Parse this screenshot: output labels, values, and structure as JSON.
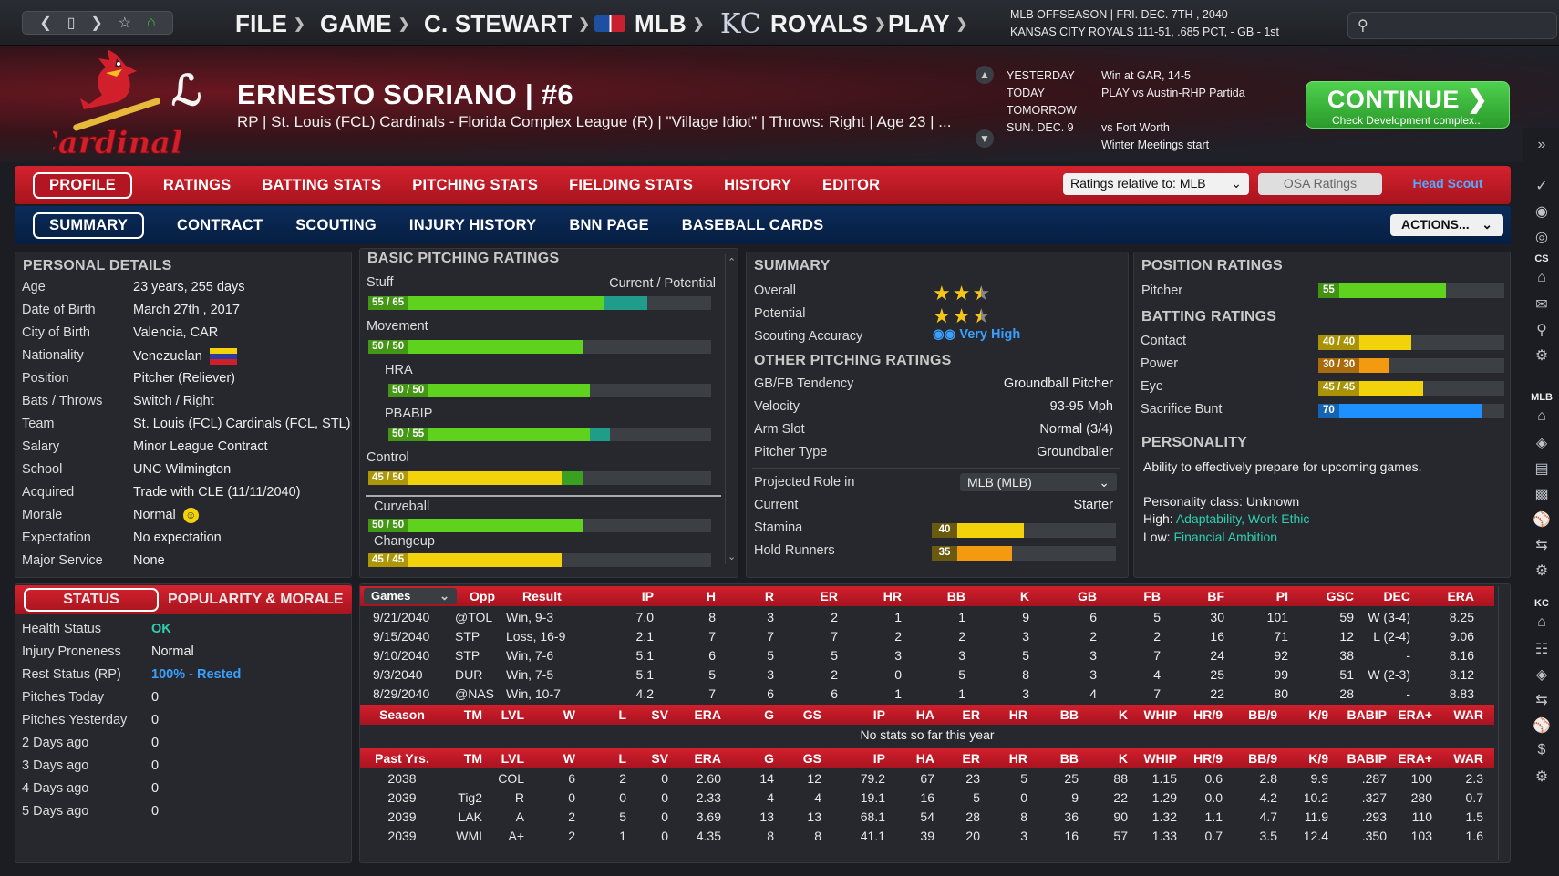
{
  "topbar": {
    "menus": [
      "FILE",
      "GAME",
      "C. STEWART",
      "MLB",
      "ROYALS",
      "PLAY"
    ],
    "info1": "MLB OFFSEASON  |  FRI. DEC. 7TH , 2040",
    "info2": "KANSAS CITY ROYALS   111-51, .685 PCT, - GB - 1st"
  },
  "player": {
    "name": "ERNESTO SORIANO  |  #6",
    "desc": "RP | St. Louis (FCL) Cardinals - Florida Complex League (R)  |  \"Village Idiot\" | Throws: Right  |  Age 23  |  ..."
  },
  "schedule": {
    "labels": [
      "YESTERDAY",
      "TODAY",
      "TOMORROW",
      "SUN. DEC. 9"
    ],
    "values": [
      "Win at GAR, 14-5",
      "PLAY vs Austin-RHP Partida",
      "",
      "vs Fort Worth"
    ],
    "extra": "Winter Meetings start"
  },
  "continue": {
    "title": "CONTINUE",
    "sub": "Check Development complex..."
  },
  "tabs1": [
    "PROFILE",
    "RATINGS",
    "BATTING STATS",
    "PITCHING STATS",
    "FIELDING STATS",
    "HISTORY",
    "EDITOR"
  ],
  "tabs2": [
    "SUMMARY",
    "CONTRACT",
    "SCOUTING",
    "INJURY HISTORY",
    "BNN PAGE",
    "BASEBALL CARDS"
  ],
  "controls": {
    "ratings_relative": "Ratings relative to: MLB",
    "osa": "OSA Ratings",
    "head_scout": "Head Scout",
    "actions": "ACTIONS..."
  },
  "personal": {
    "title": "PERSONAL DETAILS",
    "rows": [
      [
        "Age",
        "23 years, 255 days"
      ],
      [
        "Date of Birth",
        "March 27th , 2017"
      ],
      [
        "City of Birth",
        "Valencia, CAR"
      ],
      [
        "Nationality",
        "Venezuelan"
      ],
      [
        "Position",
        "Pitcher (Reliever)"
      ],
      [
        "Bats / Throws",
        "Switch / Right"
      ],
      [
        "Team",
        "St. Louis (FCL) Cardinals (FCL, STL)"
      ],
      [
        "Salary",
        "Minor League Contract"
      ],
      [
        "School",
        "UNC Wilmington"
      ],
      [
        "Acquired",
        "Trade with CLE (11/11/2040)"
      ],
      [
        "Morale",
        "Normal"
      ],
      [
        "Expectation",
        "No expectation"
      ],
      [
        "Major Service",
        "None"
      ]
    ]
  },
  "basic": {
    "title": "BASIC PITCHING RATINGS",
    "header_right": "Current / Potential",
    "bars": [
      {
        "name": "Stuff",
        "label": "55 / 65",
        "cur": 55,
        "pot": 65,
        "color": "#5fd21e",
        "indent": false
      },
      {
        "name": "Movement",
        "label": "50 / 50",
        "cur": 50,
        "pot": 50,
        "color": "#5fd21e",
        "indent": false
      },
      {
        "name": "HRA",
        "label": "50 / 50",
        "cur": 50,
        "pot": 50,
        "color": "#5fd21e",
        "indent": true
      },
      {
        "name": "PBABIP",
        "label": "50 / 55",
        "cur": 50,
        "pot": 55,
        "color": "#5fd21e",
        "indent": true
      },
      {
        "name": "Control",
        "label": "45 / 50",
        "cur": 45,
        "pot": 50,
        "color": "#f2d20a",
        "indent": false
      }
    ],
    "pitches": [
      {
        "name": "Curveball",
        "label": "50 / 50",
        "cur": 50,
        "color": "#5fd21e"
      },
      {
        "name": "Changeup",
        "label": "45 / 45",
        "cur": 45,
        "color": "#f2d20a"
      }
    ]
  },
  "summary": {
    "title": "SUMMARY",
    "overall": "Overall",
    "potential": "Potential",
    "overall_stars": 2.5,
    "potential_stars": 2.5,
    "accuracy_label": "Scouting Accuracy",
    "accuracy": "Very High",
    "other_title": "OTHER PITCHING RATINGS",
    "other": [
      [
        "GB/FB Tendency",
        "Groundball Pitcher"
      ],
      [
        "Velocity",
        "93-95 Mph"
      ],
      [
        "Arm Slot",
        "Normal (3/4)"
      ],
      [
        "Pitcher Type",
        "Groundballer"
      ]
    ],
    "projected_label": "Projected Role in",
    "projected_value": "MLB (MLB)",
    "current_label": "Current",
    "current_value": "Starter",
    "stamina_label": "Stamina",
    "stamina": 40,
    "hold_label": "Hold Runners",
    "hold": 35
  },
  "position": {
    "title": "POSITION RATINGS",
    "pitcher_label": "Pitcher",
    "pitcher": 55,
    "batting_title": "BATTING RATINGS",
    "batting": [
      {
        "name": "Contact",
        "label": "40 / 40",
        "cur": 40,
        "color": "#f2d20a"
      },
      {
        "name": "Power",
        "label": "30 / 30",
        "cur": 30,
        "color": "#f39a10"
      },
      {
        "name": "Eye",
        "label": "45 / 45",
        "cur": 45,
        "color": "#f2d20a"
      },
      {
        "name": "Sacrifice Bunt",
        "label": "70",
        "cur": 70,
        "color": "#1e90ff"
      }
    ],
    "personality_title": "PERSONALITY",
    "personality_desc": "Ability to effectively prepare for upcoming games.",
    "personality_class": "Personality class: Unknown",
    "high_label": "High: ",
    "high": "Adaptability, Work Ethic",
    "low_label": "Low: ",
    "low": "Financial Ambition"
  },
  "status": {
    "tab_active": "STATUS",
    "tab_other": "POPULARITY & MORALE",
    "rows": [
      [
        "Health Status",
        "OK"
      ],
      [
        "Injury Proneness",
        "Normal"
      ],
      [
        "Rest Status (RP)",
        "100% - Rested"
      ],
      [
        "Pitches Today",
        "0"
      ],
      [
        "Pitches Yesterday",
        "0"
      ],
      [
        "2 Days ago",
        "0"
      ],
      [
        "3 Days ago",
        "0"
      ],
      [
        "4 Days ago",
        "0"
      ],
      [
        "5 Days ago",
        "0"
      ]
    ]
  },
  "games": {
    "select": "Games",
    "headers": [
      "Opp",
      "Result",
      "IP",
      "H",
      "R",
      "ER",
      "HR",
      "BB",
      "K",
      "GB",
      "FB",
      "BF",
      "PI",
      "GSC",
      "DEC",
      "ERA"
    ],
    "rows": [
      [
        "9/21/2040",
        "@TOL",
        "Win, 9-3",
        "7.0",
        "8",
        "3",
        "2",
        "1",
        "1",
        "9",
        "6",
        "5",
        "30",
        "101",
        "59",
        "W (3-4)",
        "8.25"
      ],
      [
        "9/15/2040",
        "STP",
        "Loss, 16-9",
        "2.1",
        "7",
        "7",
        "7",
        "2",
        "2",
        "3",
        "2",
        "2",
        "16",
        "71",
        "12",
        "L (2-4)",
        "9.06"
      ],
      [
        "9/10/2040",
        "STP",
        "Win, 7-6",
        "5.1",
        "6",
        "5",
        "5",
        "3",
        "3",
        "5",
        "3",
        "7",
        "24",
        "92",
        "38",
        "-",
        "8.16"
      ],
      [
        "9/3/2040",
        "DUR",
        "Win, 7-5",
        "5.1",
        "5",
        "3",
        "2",
        "0",
        "5",
        "8",
        "3",
        "4",
        "25",
        "99",
        "51",
        "W (2-3)",
        "8.12"
      ],
      [
        "8/29/2040",
        "@NAS",
        "Win, 10-7",
        "4.2",
        "7",
        "6",
        "6",
        "1",
        "1",
        "3",
        "4",
        "7",
        "22",
        "80",
        "28",
        "-",
        "8.83"
      ]
    ],
    "season_headers": [
      "Season",
      "TM",
      "LVL",
      "W",
      "L",
      "SV",
      "ERA",
      "G",
      "GS",
      "IP",
      "HA",
      "ER",
      "HR",
      "BB",
      "K",
      "WHIP",
      "HR/9",
      "BB/9",
      "K/9",
      "BABIP",
      "ERA+",
      "WAR"
    ],
    "no_stats": "No stats so far this year",
    "past_headers": [
      "Past Yrs.",
      "TM",
      "LVL",
      "W",
      "L",
      "SV",
      "ERA",
      "G",
      "GS",
      "IP",
      "HA",
      "ER",
      "HR",
      "BB",
      "K",
      "WHIP",
      "HR/9",
      "BB/9",
      "K/9",
      "BABIP",
      "ERA+",
      "WAR"
    ],
    "past": [
      [
        "2038",
        "",
        "COL",
        "6",
        "2",
        "0",
        "2.60",
        "14",
        "12",
        "79.2",
        "67",
        "23",
        "5",
        "25",
        "88",
        "1.15",
        "0.6",
        "2.8",
        "9.9",
        ".287",
        "100",
        "2.3"
      ],
      [
        "2039",
        "Tig2",
        "R",
        "0",
        "0",
        "0",
        "2.33",
        "4",
        "4",
        "19.1",
        "16",
        "5",
        "0",
        "9",
        "22",
        "1.29",
        "0.0",
        "4.2",
        "10.2",
        ".327",
        "280",
        "0.7"
      ],
      [
        "2039",
        "LAK",
        "A",
        "2",
        "5",
        "0",
        "3.69",
        "13",
        "13",
        "68.1",
        "54",
        "28",
        "8",
        "36",
        "90",
        "1.32",
        "1.1",
        "4.7",
        "11.9",
        ".293",
        "110",
        "1.5"
      ],
      [
        "2039",
        "WMI",
        "A+",
        "2",
        "1",
        "0",
        "4.35",
        "8",
        "8",
        "41.1",
        "39",
        "20",
        "3",
        "16",
        "57",
        "1.33",
        "0.7",
        "3.5",
        "12.4",
        ".350",
        "103",
        "1.6"
      ]
    ]
  },
  "sidebar": {
    "cs": "CS",
    "mlb": "MLB",
    "kc": "KC"
  },
  "colors": {
    "red": "#c41a26",
    "navy": "#0a2650",
    "green": "#5fd21e",
    "yellow": "#f2d20a",
    "teal": "#2ecfb0",
    "link": "#3aa0ff"
  }
}
